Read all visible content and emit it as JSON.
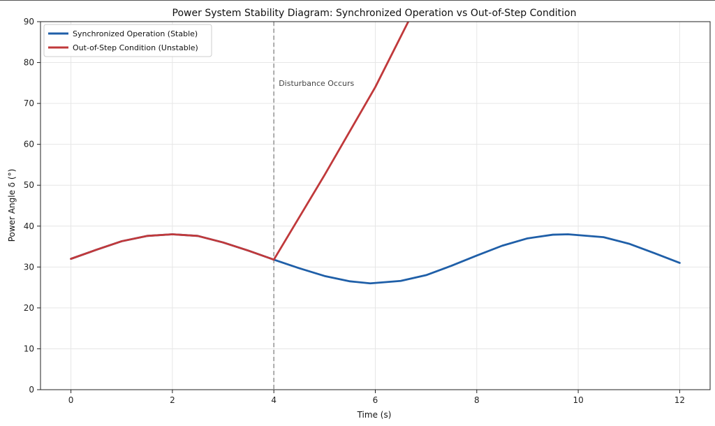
{
  "chart_data": {
    "type": "line",
    "title": "Power System Stability Diagram: Synchronized Operation vs Out-of-Step Condition",
    "xlabel": "Time (s)",
    "ylabel": "Power Angle δ (°)",
    "xlim": [
      -0.6,
      12.6
    ],
    "ylim": [
      0,
      90
    ],
    "xticks": [
      0,
      2,
      4,
      6,
      8,
      10,
      12
    ],
    "yticks": [
      0,
      10,
      20,
      30,
      40,
      50,
      60,
      70,
      80,
      90
    ],
    "grid": true,
    "legend_position": "top-left",
    "series": [
      {
        "name": "Synchronized Operation (Stable)",
        "color": "#1f5fa8",
        "x": [
          0,
          0.5,
          1,
          1.5,
          2,
          2.5,
          3,
          3.5,
          4,
          4.5,
          5,
          5.5,
          5.9,
          6.5,
          7,
          7.5,
          8,
          8.5,
          9,
          9.5,
          9.8,
          10.5,
          11,
          11.5,
          12
        ],
        "y": [
          32,
          34.2,
          36.3,
          37.6,
          38,
          37.6,
          36,
          34,
          31.8,
          29.7,
          27.8,
          26.5,
          26,
          26.6,
          28,
          30.3,
          32.8,
          35.2,
          37,
          37.9,
          38,
          37.3,
          35.7,
          33.4,
          31
        ]
      },
      {
        "name": "Out-of-Step Condition (Unstable)",
        "color": "#c0393b",
        "x": [
          0,
          0.5,
          1,
          1.5,
          2,
          2.5,
          3,
          3.5,
          4,
          5,
          6,
          6.65
        ],
        "y": [
          32,
          34.2,
          36.3,
          37.6,
          38,
          37.6,
          36,
          34,
          31.8,
          52.5,
          74,
          90
        ]
      }
    ],
    "annotations": [
      {
        "text": "Disturbance Occurs",
        "x": 4,
        "y": 75,
        "line_x": 4,
        "line_color": "#999999"
      }
    ]
  }
}
